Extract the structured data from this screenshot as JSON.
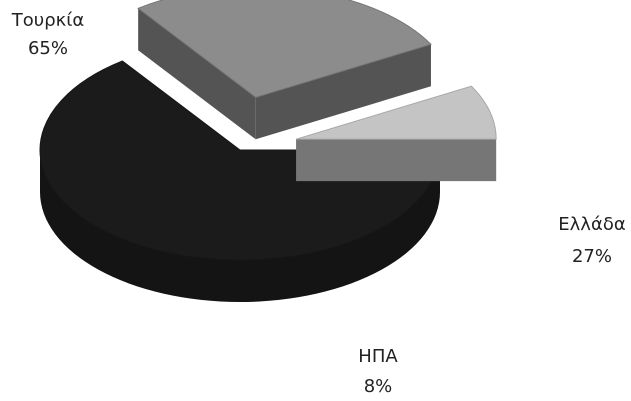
{
  "chart_data": {
    "type": "pie",
    "style": "3d-exploded",
    "series": [
      {
        "slices": [
          {
            "label": "Τουρκία",
            "value": 65,
            "value_label": "65%",
            "color": "#1b1b1b"
          },
          {
            "label": "Ελλάδα",
            "value": 27,
            "value_label": "27%",
            "color": "#8c8c8c"
          },
          {
            "label": "ΗΠΑ",
            "value": 8,
            "value_label": "8%",
            "color": "#c4c4c4"
          }
        ]
      }
    ]
  }
}
